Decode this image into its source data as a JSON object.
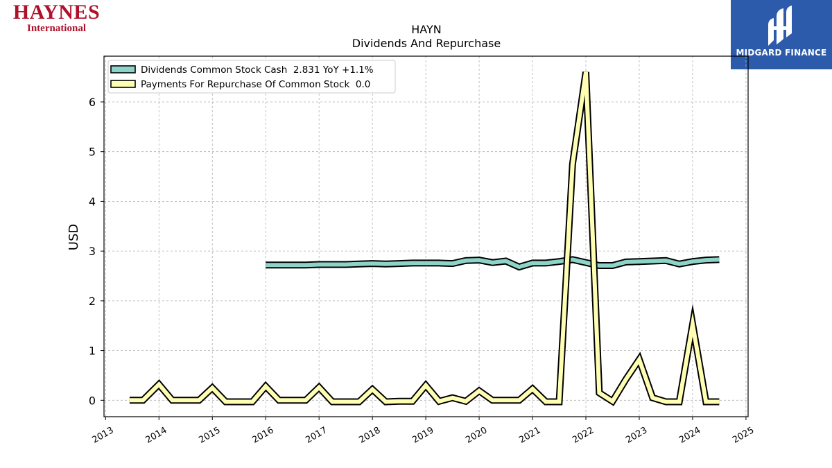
{
  "logos": {
    "left_brand": "HAYNES",
    "left_sub": "International",
    "right_name": "MIDGARD FINANCE"
  },
  "chart_data": {
    "type": "line",
    "title": "HAYN",
    "subtitle": "Dividends And Repurchase",
    "ylabel": "USD",
    "xlim": [
      2012.97,
      2025.04
    ],
    "ylim": [
      -0.33,
      6.92
    ],
    "x_ticks": [
      "2013",
      "2014",
      "2015",
      "2016",
      "2017",
      "2018",
      "2019",
      "2020",
      "2021",
      "2022",
      "2023",
      "2024",
      "2025"
    ],
    "y_ticks": [
      "0",
      "1",
      "2",
      "3",
      "4",
      "5",
      "6"
    ],
    "grid": true,
    "legend_position": "top-left",
    "series": [
      {
        "name": "Dividends Common Stock Cash  2.831 YoY +1.1%",
        "color": "#8dd3c7",
        "x": [
          2016.0,
          2016.25,
          2016.5,
          2016.75,
          2017.0,
          2017.25,
          2017.5,
          2017.75,
          2018.0,
          2018.25,
          2018.5,
          2018.75,
          2019.0,
          2019.25,
          2019.5,
          2019.75,
          2020.0,
          2020.25,
          2020.5,
          2020.75,
          2021.0,
          2021.25,
          2021.5,
          2021.75,
          2022.0,
          2022.25,
          2022.5,
          2022.75,
          2023.0,
          2023.25,
          2023.5,
          2023.75,
          2024.0,
          2024.25,
          2024.5
        ],
        "y": [
          2.72,
          2.72,
          2.72,
          2.72,
          2.73,
          2.73,
          2.73,
          2.74,
          2.75,
          2.74,
          2.75,
          2.76,
          2.76,
          2.76,
          2.75,
          2.81,
          2.82,
          2.77,
          2.8,
          2.68,
          2.76,
          2.76,
          2.79,
          2.83,
          2.77,
          2.71,
          2.71,
          2.78,
          2.79,
          2.8,
          2.81,
          2.74,
          2.79,
          2.82,
          2.83
        ]
      },
      {
        "name": "Payments For Repurchase Of Common Stock  0.0",
        "color": "#ffffb3",
        "x": [
          2013.45,
          2013.7,
          2014.0,
          2014.25,
          2014.5,
          2014.75,
          2015.0,
          2015.25,
          2015.5,
          2015.75,
          2016.0,
          2016.25,
          2016.5,
          2016.75,
          2017.0,
          2017.25,
          2017.5,
          2017.75,
          2018.0,
          2018.25,
          2018.5,
          2018.75,
          2019.0,
          2019.25,
          2019.5,
          2019.75,
          2020.0,
          2020.25,
          2020.5,
          2020.75,
          2021.0,
          2021.25,
          2021.5,
          2021.75,
          2022.0,
          2022.25,
          2022.5,
          2022.75,
          2023.0,
          2023.25,
          2023.5,
          2023.75,
          2024.0,
          2024.25,
          2024.5
        ],
        "y": [
          0.0,
          0.0,
          0.32,
          0.0,
          0.0,
          0.0,
          0.25,
          -0.03,
          -0.03,
          -0.03,
          0.28,
          0.0,
          0.0,
          0.0,
          0.26,
          -0.03,
          -0.03,
          -0.03,
          0.22,
          -0.03,
          -0.02,
          -0.02,
          0.3,
          -0.02,
          0.05,
          -0.02,
          0.19,
          0.0,
          0.0,
          0.0,
          0.23,
          -0.03,
          -0.03,
          4.75,
          6.6,
          0.15,
          -0.02,
          0.42,
          0.82,
          0.05,
          -0.03,
          -0.03,
          1.53,
          -0.03,
          -0.03
        ]
      }
    ]
  }
}
